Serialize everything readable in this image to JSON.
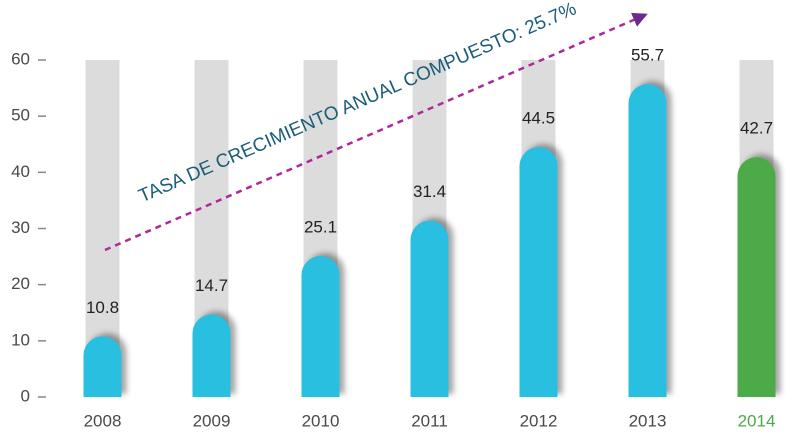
{
  "chart_data": {
    "type": "bar",
    "annotation": "TASA DE CRECIMIENTO ANUAL COMPUESTO: 25.7%",
    "categories": [
      "2008",
      "2009",
      "2010",
      "2011",
      "2012",
      "2013",
      "2014"
    ],
    "values": [
      10.8,
      14.7,
      25.1,
      31.4,
      44.5,
      55.7,
      42.7
    ],
    "color": "#29bfe0",
    "highlight_color": "#4cab48",
    "highlight_categories": [
      "2014"
    ],
    "background_bar_color": "#dcdcdc",
    "arrow_color": "#b0279a",
    "annotation_color": "#1a5d7a",
    "ylim": [
      0,
      60
    ],
    "yticks": [
      0,
      10,
      20,
      30,
      40,
      50,
      60
    ]
  }
}
